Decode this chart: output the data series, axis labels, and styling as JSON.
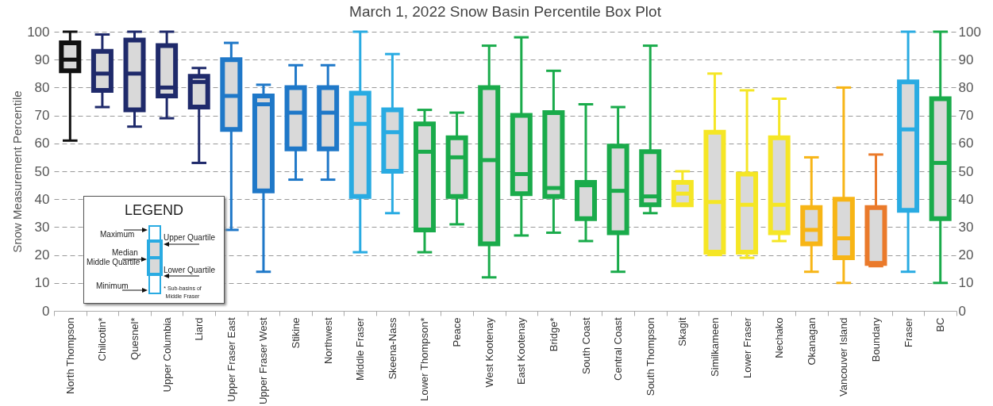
{
  "chart_data": {
    "type": "box",
    "title": "March 1, 2022 Snow Basin Percentile Box Plot",
    "ylabel": "Snow Measurement Percentile",
    "categories": [
      "North Thompson",
      "Chilcotin*",
      "Quesnel*",
      "Upper Columbia",
      "Liard",
      "Upper Fraser East",
      "Upper Fraser West",
      "Stikine",
      "Northwest",
      "Middle Fraser",
      "Skeena-Nass",
      "Lower Thompson*",
      "Peace",
      "West Kootenay",
      "East Kootenay",
      "Bridge*",
      "South Coast",
      "Central Coast",
      "South Thompson",
      "Skagit",
      "Similkameen",
      "Lower Fraser",
      "Nechako",
      "Okanagan",
      "Vancouver Island",
      "Boundary",
      "Fraser",
      "BC"
    ],
    "boxes": [
      {
        "low": 61,
        "q1": 86,
        "median": 90,
        "q3": 96,
        "high": 100
      },
      {
        "low": 73,
        "q1": 79,
        "median": 85,
        "q3": 93,
        "high": 99
      },
      {
        "low": 66,
        "q1": 72,
        "median": 85,
        "q3": 97,
        "high": 100
      },
      {
        "low": 69,
        "q1": 77,
        "median": 80,
        "q3": 95,
        "high": 100
      },
      {
        "low": 53,
        "q1": 73,
        "median": 82,
        "q3": 84,
        "high": 87
      },
      {
        "low": 29,
        "q1": 65,
        "median": 77,
        "q3": 90,
        "high": 96
      },
      {
        "low": 14,
        "q1": 43,
        "median": 74,
        "q3": 77,
        "high": 81
      },
      {
        "low": 47,
        "q1": 58,
        "median": 71,
        "q3": 80,
        "high": 88
      },
      {
        "low": 47,
        "q1": 58,
        "median": 71,
        "q3": 80,
        "high": 88
      },
      {
        "low": 21,
        "q1": 41,
        "median": 67,
        "q3": 78,
        "high": 100
      },
      {
        "low": 35,
        "q1": 50,
        "median": 64,
        "q3": 72,
        "high": 92
      },
      {
        "low": 21,
        "q1": 29,
        "median": 57,
        "q3": 67,
        "high": 72
      },
      {
        "low": 31,
        "q1": 41,
        "median": 55,
        "q3": 62,
        "high": 71
      },
      {
        "low": 12,
        "q1": 24,
        "median": 54,
        "q3": 80,
        "high": 95
      },
      {
        "low": 27,
        "q1": 42,
        "median": 49,
        "q3": 70,
        "high": 98
      },
      {
        "low": 28,
        "q1": 41,
        "median": 44,
        "q3": 71,
        "high": 86
      },
      {
        "low": 25,
        "q1": 33,
        "median": 45,
        "q3": 46,
        "high": 74
      },
      {
        "low": 14,
        "q1": 28,
        "median": 43,
        "q3": 59,
        "high": 73
      },
      {
        "low": 35,
        "q1": 38,
        "median": 41,
        "q3": 57,
        "high": 95
      },
      {
        "low": 38,
        "q1": 38,
        "median": 42,
        "q3": 46,
        "high": 50
      },
      {
        "low": 20,
        "q1": 21,
        "median": 39,
        "q3": 64,
        "high": 85
      },
      {
        "low": 19,
        "q1": 21,
        "median": 38,
        "q3": 49,
        "high": 79
      },
      {
        "low": 25,
        "q1": 28,
        "median": 38,
        "q3": 62,
        "high": 76
      },
      {
        "low": 14,
        "q1": 24,
        "median": 29,
        "q3": 37,
        "high": 55
      },
      {
        "low": 10,
        "q1": 19,
        "median": 26,
        "q3": 40,
        "high": 80
      },
      {
        "low": 16,
        "q1": 17,
        "median": 17,
        "q3": 37,
        "high": 56
      },
      {
        "low": 14,
        "q1": 36,
        "median": 65,
        "q3": 82,
        "high": 100
      },
      {
        "low": 10,
        "q1": 33,
        "median": 53,
        "q3": 76,
        "high": 100
      }
    ],
    "colors": [
      "#111111",
      "#1f2a6b",
      "#1f2a6b",
      "#1f2a6b",
      "#1f2a6b",
      "#1f78c8",
      "#1f78c8",
      "#1f78c8",
      "#1f78c8",
      "#29abe2",
      "#29abe2",
      "#1aab4b",
      "#1aab4b",
      "#1aab4b",
      "#1aab4b",
      "#1aab4b",
      "#1aab4b",
      "#1aab4b",
      "#1aab4b",
      "#f5e625",
      "#f5e625",
      "#f5e625",
      "#f5e625",
      "#f7b516",
      "#f7b516",
      "#ea7a2b",
      "#29abe2",
      "#1aab4b"
    ],
    "ylim": [
      0,
      100
    ],
    "yticks": [
      0,
      10,
      20,
      30,
      40,
      50,
      60,
      70,
      80,
      90,
      100
    ],
    "y2lim": [
      0,
      100
    ],
    "y2ticks": [
      0,
      10,
      20,
      30,
      40,
      50,
      60,
      70,
      80,
      90,
      100
    ],
    "grid": "y",
    "annotations": [
      "LEGEND",
      "Maximum",
      "Upper Quartile",
      "Median",
      "Middle Quartile",
      "Lower Quartile",
      "Minimum",
      "* Sub-basins of",
      "Middle Fraser"
    ]
  }
}
